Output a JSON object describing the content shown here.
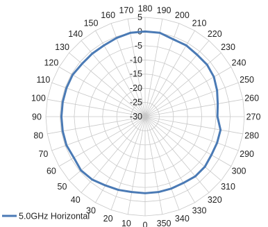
{
  "chart_data": {
    "type": "radar",
    "title": "",
    "angle_unit": "degrees",
    "angles": [
      0,
      10,
      20,
      30,
      40,
      50,
      60,
      70,
      80,
      90,
      100,
      110,
      120,
      130,
      140,
      150,
      160,
      170,
      180,
      190,
      200,
      210,
      220,
      230,
      240,
      250,
      260,
      270,
      280,
      290,
      300,
      310,
      320,
      330,
      340,
      350
    ],
    "angle_labels": [
      "0",
      "10",
      "20",
      "30",
      "40",
      "50",
      "60",
      "70",
      "80",
      "90",
      "100",
      "110",
      "120",
      "130",
      "140",
      "150",
      "160",
      "170",
      "180",
      "190",
      "200",
      "210",
      "220",
      "230",
      "240",
      "250",
      "260",
      "270",
      "280",
      "290",
      "300",
      "310",
      "320",
      "330",
      "340",
      "350"
    ],
    "radial_range": [
      -30,
      5
    ],
    "radial_ticks": [
      -30,
      -25,
      -20,
      -15,
      -10,
      -5,
      0,
      5
    ],
    "radial_tick_labels": [
      "-30",
      "-25",
      "-20",
      "-15",
      "-10",
      "-5",
      "0",
      "5"
    ],
    "grid": true,
    "legend_position": "bottom-left",
    "series": [
      {
        "name": "5.0GHz Horizontal",
        "color": "#4a7ab5",
        "values": [
          -3,
          -3,
          -2.5,
          -2,
          -1,
          -0.5,
          -1,
          -0.5,
          -0.5,
          -0.5,
          -0.5,
          -0.5,
          -0.5,
          -1,
          -1,
          -1,
          -0.5,
          0,
          0,
          0,
          -1,
          -1,
          -1.5,
          -1.5,
          -2,
          -3,
          -4,
          -4.5,
          -3,
          -3,
          -3,
          -2.5,
          -2.5,
          -3,
          -3,
          -3
        ]
      }
    ]
  },
  "colors": {
    "grid": "#c8c8c8",
    "text": "#222222"
  }
}
